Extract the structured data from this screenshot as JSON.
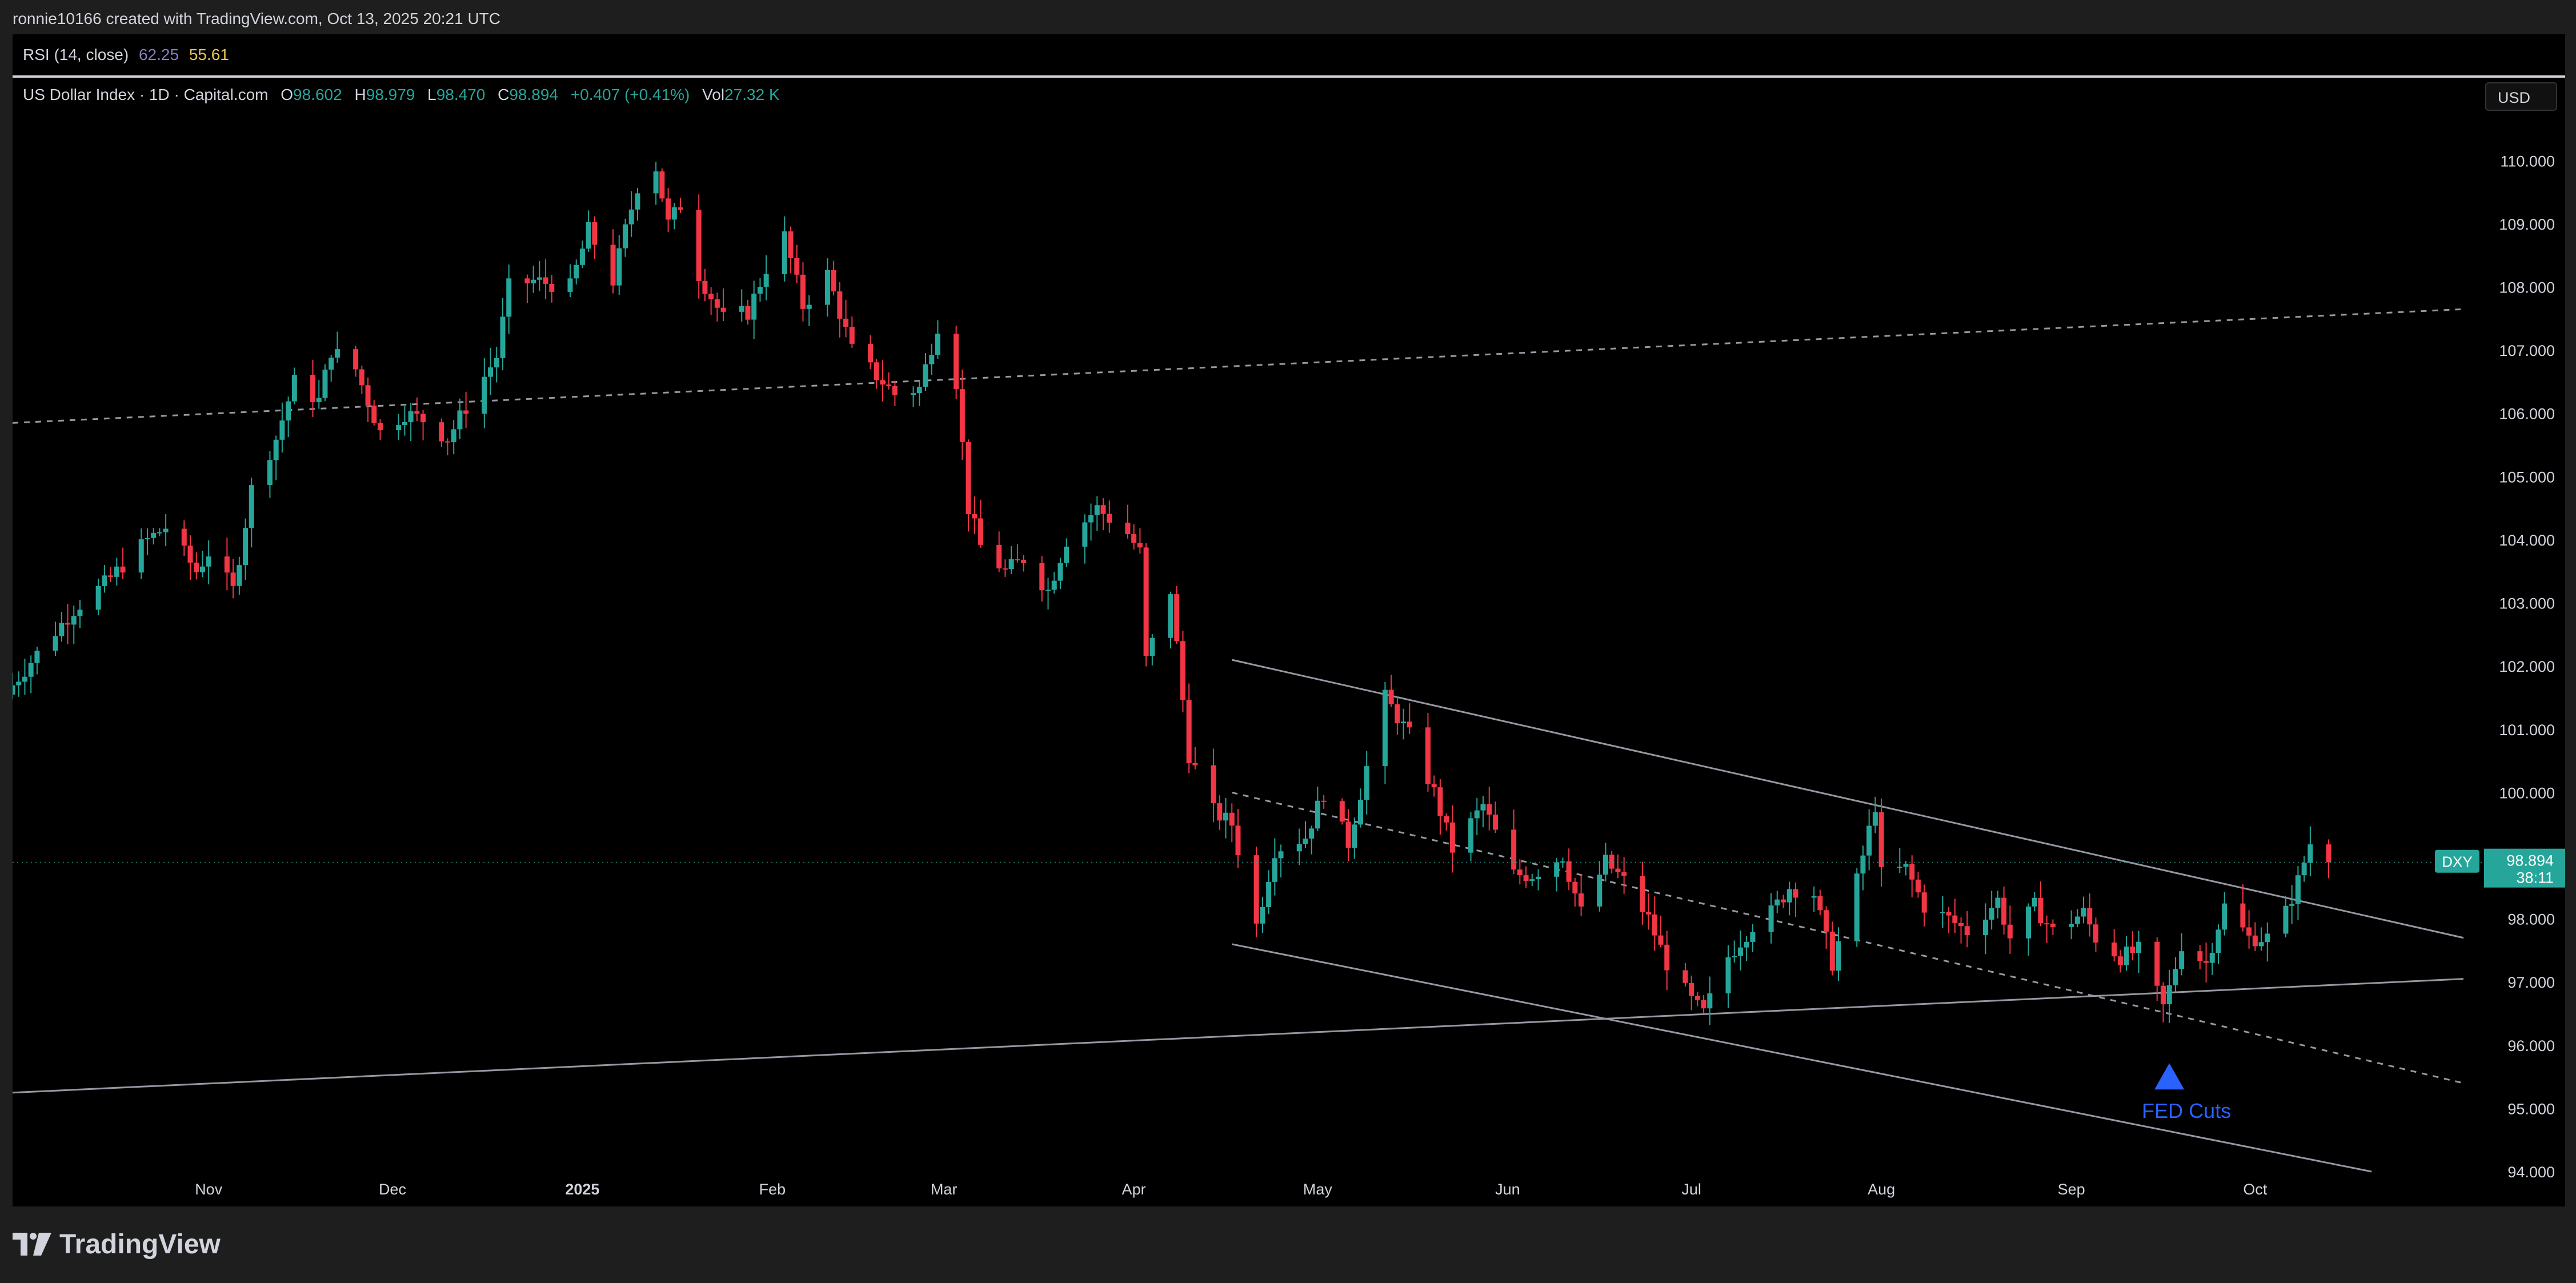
{
  "header": {
    "caption": "ronnie10166 created with TradingView.com, Oct 13, 2025 20:21 UTC"
  },
  "rsi": {
    "label": "RSI (14, close)",
    "value1": "62.25",
    "value2": "55.61",
    "color1": "#8e7cc3",
    "color2": "#e6c84a"
  },
  "legend": {
    "symbol": "US Dollar Index · 1D · Capital.com",
    "o_label": "O",
    "o": "98.602",
    "h_label": "H",
    "h": "98.979",
    "l_label": "L",
    "l": "98.470",
    "c_label": "C",
    "c": "98.894",
    "change": "+0.407 (+0.41%)",
    "vol_label": "Vol",
    "vol": "27.32 K"
  },
  "currency": "USD",
  "price_tag": {
    "ticker": "DXY",
    "price": "98.894",
    "countdown": "38:11"
  },
  "annotation": {
    "text": "FED Cuts"
  },
  "colors": {
    "up": "#26a69a",
    "down": "#f23645",
    "background": "#000000",
    "annotation": "#2962ff",
    "trendline": "#9598a1"
  },
  "footer": {
    "brand": "TradingView"
  },
  "chart_data": {
    "type": "candlestick",
    "title": "US Dollar Index · 1D · Capital.com",
    "ylim": [
      94.0,
      110.5
    ],
    "y_ticks": [
      "94.000",
      "95.000",
      "96.000",
      "97.000",
      "98.000",
      "99.000",
      "100.000",
      "101.000",
      "102.000",
      "103.000",
      "104.000",
      "105.000",
      "106.000",
      "107.000",
      "108.000",
      "109.000",
      "110.000"
    ],
    "x_ticks": [
      {
        "label": "Nov",
        "date": "2024-11-01",
        "bold": false
      },
      {
        "label": "Dec",
        "date": "2024-12-01",
        "bold": false
      },
      {
        "label": "2025",
        "date": "2025-01-01",
        "bold": true
      },
      {
        "label": "Feb",
        "date": "2025-02-01",
        "bold": false
      },
      {
        "label": "Mar",
        "date": "2025-03-01",
        "bold": false
      },
      {
        "label": "Apr",
        "date": "2025-04-01",
        "bold": false
      },
      {
        "label": "May",
        "date": "2025-05-01",
        "bold": false
      },
      {
        "label": "Jun",
        "date": "2025-06-01",
        "bold": false
      },
      {
        "label": "Jul",
        "date": "2025-07-01",
        "bold": false
      },
      {
        "label": "Aug",
        "date": "2025-08-01",
        "bold": false
      },
      {
        "label": "Sep",
        "date": "2025-09-01",
        "bold": false
      },
      {
        "label": "Oct",
        "date": "2025-10-01",
        "bold": false
      }
    ],
    "x_range": [
      "2024-09-30",
      "2025-11-04"
    ],
    "current_price": 98.894,
    "anchors": [
      [
        "2024-09-30",
        101.7
      ],
      [
        "2024-10-04",
        102.2
      ],
      [
        "2024-10-10",
        102.9
      ],
      [
        "2024-10-15",
        103.3
      ],
      [
        "2024-10-22",
        104.0
      ],
      [
        "2024-10-25",
        104.2
      ],
      [
        "2024-10-30",
        103.5
      ],
      [
        "2024-11-01",
        103.8
      ],
      [
        "2024-11-05",
        103.2
      ],
      [
        "2024-11-08",
        104.8
      ],
      [
        "2024-11-12",
        105.6
      ],
      [
        "2024-11-15",
        106.5
      ],
      [
        "2024-11-19",
        106.2
      ],
      [
        "2024-11-21",
        107.0
      ],
      [
        "2024-11-25",
        106.7
      ],
      [
        "2024-11-29",
        105.7
      ],
      [
        "2024-12-03",
        106.0
      ],
      [
        "2024-12-06",
        105.9
      ],
      [
        "2024-12-10",
        105.6
      ],
      [
        "2024-12-13",
        106.1
      ],
      [
        "2024-12-18",
        106.9
      ],
      [
        "2024-12-20",
        108.0
      ],
      [
        "2024-12-24",
        108.1
      ],
      [
        "2024-12-30",
        108.0
      ],
      [
        "2025-01-02",
        108.9
      ],
      [
        "2025-01-06",
        108.1
      ],
      [
        "2025-01-08",
        108.9
      ],
      [
        "2025-01-10",
        109.6
      ],
      [
        "2025-01-13",
        109.9
      ],
      [
        "2025-01-15",
        109.0
      ],
      [
        "2025-01-17",
        109.3
      ],
      [
        "2025-01-20",
        108.2
      ],
      [
        "2025-01-24",
        107.5
      ],
      [
        "2025-01-28",
        107.6
      ],
      [
        "2025-01-31",
        108.3
      ],
      [
        "2025-02-03",
        108.8
      ],
      [
        "2025-02-06",
        107.7
      ],
      [
        "2025-02-10",
        108.2
      ],
      [
        "2025-02-14",
        107.0
      ],
      [
        "2025-02-18",
        106.6
      ],
      [
        "2025-02-21",
        106.3
      ],
      [
        "2025-02-25",
        106.4
      ],
      [
        "2025-02-28",
        107.4
      ],
      [
        "2025-03-03",
        106.5
      ],
      [
        "2025-03-05",
        104.5
      ],
      [
        "2025-03-07",
        103.9
      ],
      [
        "2025-03-11",
        103.5
      ],
      [
        "2025-03-14",
        103.7
      ],
      [
        "2025-03-18",
        103.2
      ],
      [
        "2025-03-21",
        104.0
      ],
      [
        "2025-03-26",
        104.5
      ],
      [
        "2025-03-31",
        104.1
      ],
      [
        "2025-04-02",
        103.8
      ],
      [
        "2025-04-03",
        102.1
      ],
      [
        "2025-04-07",
        103.2
      ],
      [
        "2025-04-10",
        100.6
      ],
      [
        "2025-04-14",
        99.7
      ],
      [
        "2025-04-17",
        99.5
      ],
      [
        "2025-04-21",
        97.9
      ],
      [
        "2025-04-24",
        99.1
      ],
      [
        "2025-04-29",
        99.3
      ],
      [
        "2025-05-02",
        100.0
      ],
      [
        "2025-05-06",
        99.2
      ],
      [
        "2025-05-09",
        100.4
      ],
      [
        "2025-05-12",
        101.5
      ],
      [
        "2025-05-16",
        100.9
      ],
      [
        "2025-05-20",
        100.0
      ],
      [
        "2025-05-23",
        99.1
      ],
      [
        "2025-05-28",
        99.8
      ],
      [
        "2025-06-02",
        98.7
      ],
      [
        "2025-06-05",
        98.7
      ],
      [
        "2025-06-10",
        99.0
      ],
      [
        "2025-06-13",
        98.1
      ],
      [
        "2025-06-17",
        98.9
      ],
      [
        "2025-06-20",
        98.6
      ],
      [
        "2025-06-24",
        98.0
      ],
      [
        "2025-06-27",
        97.3
      ],
      [
        "2025-07-01",
        96.7
      ],
      [
        "2025-07-03",
        96.5
      ],
      [
        "2025-07-07",
        97.4
      ],
      [
        "2025-07-11",
        97.9
      ],
      [
        "2025-07-14",
        98.1
      ],
      [
        "2025-07-17",
        98.5
      ],
      [
        "2025-07-21",
        98.4
      ],
      [
        "2025-07-24",
        97.3
      ],
      [
        "2025-07-28",
        98.6
      ],
      [
        "2025-07-31",
        99.8
      ],
      [
        "2025-08-01",
        98.7
      ],
      [
        "2025-08-05",
        98.8
      ],
      [
        "2025-08-08",
        98.2
      ],
      [
        "2025-08-12",
        98.0
      ],
      [
        "2025-08-15",
        97.8
      ],
      [
        "2025-08-20",
        98.3
      ],
      [
        "2025-08-22",
        97.7
      ],
      [
        "2025-08-26",
        98.2
      ],
      [
        "2025-08-29",
        97.8
      ],
      [
        "2025-09-03",
        98.1
      ],
      [
        "2025-09-05",
        97.7
      ],
      [
        "2025-09-09",
        97.4
      ],
      [
        "2025-09-12",
        97.5
      ],
      [
        "2025-09-16",
        96.6
      ],
      [
        "2025-09-17",
        96.9
      ],
      [
        "2025-09-19",
        97.6
      ],
      [
        "2025-09-23",
        97.3
      ],
      [
        "2025-09-26",
        98.2
      ],
      [
        "2025-09-30",
        97.7
      ],
      [
        "2025-10-03",
        97.7
      ],
      [
        "2025-10-06",
        98.1
      ],
      [
        "2025-10-08",
        98.6
      ],
      [
        "2025-10-10",
        99.2
      ],
      [
        "2025-10-13",
        98.894
      ]
    ],
    "lines": [
      {
        "from": [
          "2024-09-30",
          105.85
        ],
        "to": [
          "2025-11-04",
          107.65
        ],
        "style": "dashed"
      },
      {
        "from": [
          "2024-09-30",
          95.25
        ],
        "to": [
          "2025-11-04",
          97.05
        ],
        "style": "solid"
      },
      {
        "from": [
          "2025-04-17",
          102.1
        ],
        "to": [
          "2025-11-04",
          97.7
        ],
        "style": "solid"
      },
      {
        "from": [
          "2025-04-17",
          100.0
        ],
        "to": [
          "2025-11-04",
          95.4
        ],
        "style": "dashed"
      },
      {
        "from": [
          "2025-04-17",
          97.6
        ],
        "to": [
          "2025-10-20",
          94.0
        ],
        "style": "solid"
      }
    ],
    "marker": {
      "date": "2025-09-17",
      "price": 95.3,
      "label": "FED Cuts"
    }
  }
}
